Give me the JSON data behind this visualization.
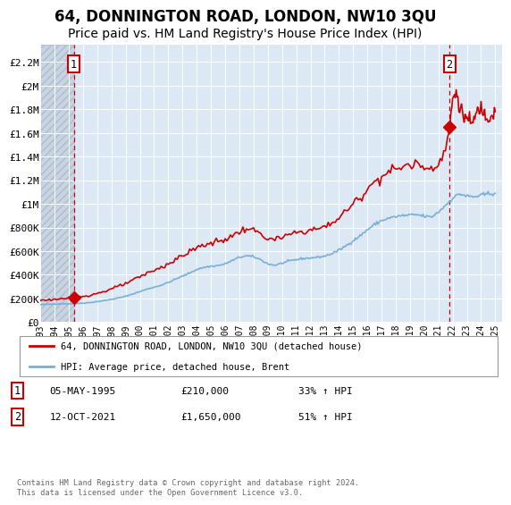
{
  "title": "64, DONNINGTON ROAD, LONDON, NW10 3QU",
  "subtitle": "Price paid vs. HM Land Registry's House Price Index (HPI)",
  "title_fontsize": 12,
  "subtitle_fontsize": 10,
  "background_color": "#ffffff",
  "plot_bg_color": "#dce9f5",
  "grid_color": "#ffffff",
  "ylabel_ticks": [
    "£0",
    "£200K",
    "£400K",
    "£600K",
    "£800K",
    "£1M",
    "£1.2M",
    "£1.4M",
    "£1.6M",
    "£1.8M",
    "£2M",
    "£2.2M"
  ],
  "ytick_values": [
    0,
    200000,
    400000,
    600000,
    800000,
    1000000,
    1200000,
    1400000,
    1600000,
    1800000,
    2000000,
    2200000
  ],
  "ylim": [
    0,
    2350000
  ],
  "xlim_start": 1993.0,
  "xlim_end": 2025.5,
  "xtick_years": [
    1993,
    1994,
    1995,
    1996,
    1997,
    1998,
    1999,
    2000,
    2001,
    2002,
    2003,
    2004,
    2005,
    2006,
    2007,
    2008,
    2009,
    2010,
    2011,
    2012,
    2013,
    2014,
    2015,
    2016,
    2017,
    2018,
    2019,
    2020,
    2021,
    2022,
    2023,
    2024,
    2025
  ],
  "sale1_x": 1995.35,
  "sale1_y": 210000,
  "sale2_x": 2021.78,
  "sale2_y": 1650000,
  "sale_color": "#cc0000",
  "hpi_color": "#7aafd4",
  "legend_label_sale": "64, DONNINGTON ROAD, LONDON, NW10 3QU (detached house)",
  "legend_label_hpi": "HPI: Average price, detached house, Brent",
  "annotation1_date": "05-MAY-1995",
  "annotation1_price": "£210,000",
  "annotation1_hpi": "33% ↑ HPI",
  "annotation2_date": "12-OCT-2021",
  "annotation2_price": "£1,650,000",
  "annotation2_hpi": "51% ↑ HPI",
  "footer": "Contains HM Land Registry data © Crown copyright and database right 2024.\nThis data is licensed under the Open Government Licence v3.0."
}
